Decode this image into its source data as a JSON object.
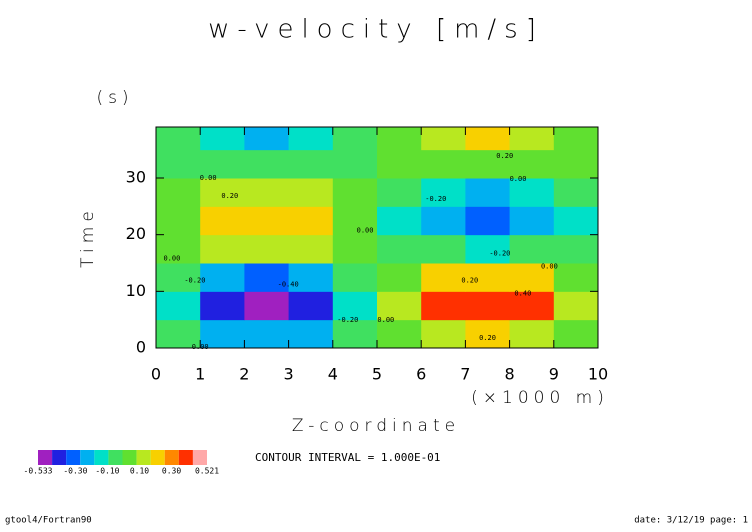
{
  "chart_data": {
    "type": "contour",
    "title": "w-velocity [m/s]",
    "x_label": "Z-coordinate",
    "x_unit": "(×1000 m)",
    "y_label": "Time",
    "y_unit": "(s)",
    "xlim": [
      0,
      10
    ],
    "ylim": [
      0,
      39
    ],
    "xticks": [
      0,
      1,
      2,
      3,
      4,
      5,
      6,
      7,
      8,
      9,
      10
    ],
    "yticks": [
      0,
      10,
      20,
      30
    ],
    "x_edges": [
      0,
      1,
      2,
      3,
      4,
      5,
      6,
      7,
      8,
      9,
      10
    ],
    "y_edges": [
      0,
      5,
      10,
      15,
      20,
      25,
      30,
      35,
      40
    ],
    "z": [
      [
        -0.08,
        -0.2,
        -0.25,
        -0.2,
        -0.08,
        0.08,
        0.2,
        0.25,
        0.2,
        0.08
      ],
      [
        -0.16,
        -0.41,
        -0.5,
        -0.41,
        -0.16,
        0.16,
        0.41,
        0.5,
        0.41,
        0.16
      ],
      [
        -0.09,
        -0.24,
        -0.3,
        -0.24,
        -0.09,
        0.09,
        0.24,
        0.3,
        0.24,
        0.09
      ],
      [
        0.05,
        0.12,
        0.15,
        0.12,
        0.05,
        -0.03,
        -0.08,
        -0.1,
        -0.08,
        -0.03
      ],
      [
        0.09,
        0.24,
        0.3,
        0.24,
        0.09,
        -0.11,
        -0.28,
        -0.35,
        -0.28,
        -0.11
      ],
      [
        0.05,
        0.12,
        0.15,
        0.12,
        0.05,
        -0.06,
        -0.16,
        -0.2,
        -0.16,
        -0.06
      ],
      [
        -0.02,
        -0.04,
        -0.05,
        -0.04,
        -0.02,
        0.02,
        0.04,
        0.05,
        0.04,
        0.02
      ],
      [
        -0.06,
        -0.16,
        -0.2,
        -0.16,
        -0.06,
        0.08,
        0.2,
        0.25,
        0.2,
        0.08
      ]
    ],
    "levels": [
      -0.533,
      -0.5,
      -0.4,
      -0.3,
      -0.2,
      -0.1,
      0,
      0.1,
      0.2,
      0.3,
      0.4,
      0.5,
      0.521
    ],
    "colors": [
      "#a020c0",
      "#2020e0",
      "#0060ff",
      "#00b0f0",
      "#00e0c8",
      "#40e060",
      "#60e030",
      "#b8e820",
      "#f8d000",
      "#ff8800",
      "#ff3000",
      "#ffa8a8"
    ],
    "colorbar_ticks": [
      -0.533,
      {
        "value": -0.3,
        "label": "-0.30"
      },
      {
        "value": -0.1,
        "label": "-0.10"
      },
      {
        "value": 0.1,
        "label": "0.10"
      },
      {
        "value": 0.3,
        "label": "0.30"
      },
      0.521
    ],
    "contour_labels": [
      {
        "x": 7.89,
        "y": 33.9,
        "label": "0.20"
      },
      {
        "x": 1.18,
        "y": 30,
        "label": "0.00"
      },
      {
        "x": 8.19,
        "y": 29.8,
        "label": "0.00"
      },
      {
        "x": 6.33,
        "y": 26.3,
        "label": "-0.20"
      },
      {
        "x": 1.67,
        "y": 26.8,
        "label": "0.20"
      },
      {
        "x": 4.73,
        "y": 20.7,
        "label": "0.00"
      },
      {
        "x": 7.78,
        "y": 16.7,
        "label": "-0.20"
      },
      {
        "x": 8.9,
        "y": 14.4,
        "label": "0.00"
      },
      {
        "x": 0.36,
        "y": 15.8,
        "label": "0.00"
      },
      {
        "x": 0.88,
        "y": 11.9,
        "label": "-0.20"
      },
      {
        "x": 7.1,
        "y": 11.9,
        "label": "0.20"
      },
      {
        "x": 2.99,
        "y": 11.2,
        "label": "-0.40"
      },
      {
        "x": 8.3,
        "y": 9.6,
        "label": "0.40"
      },
      {
        "x": 4.34,
        "y": 4.9,
        "label": "-0.20"
      },
      {
        "x": 5.2,
        "y": 4.9,
        "label": "0.00"
      },
      {
        "x": 7.5,
        "y": 1.75,
        "label": "0.20"
      },
      {
        "x": 1.0,
        "y": 0.2,
        "label": "0.00"
      }
    ],
    "contour_interval": "CONTOUR INTERVAL = 1.000E-01",
    "footer_left": "gtool4/Fortran90",
    "footer_right": "date: 3/12/19 page: 1"
  }
}
